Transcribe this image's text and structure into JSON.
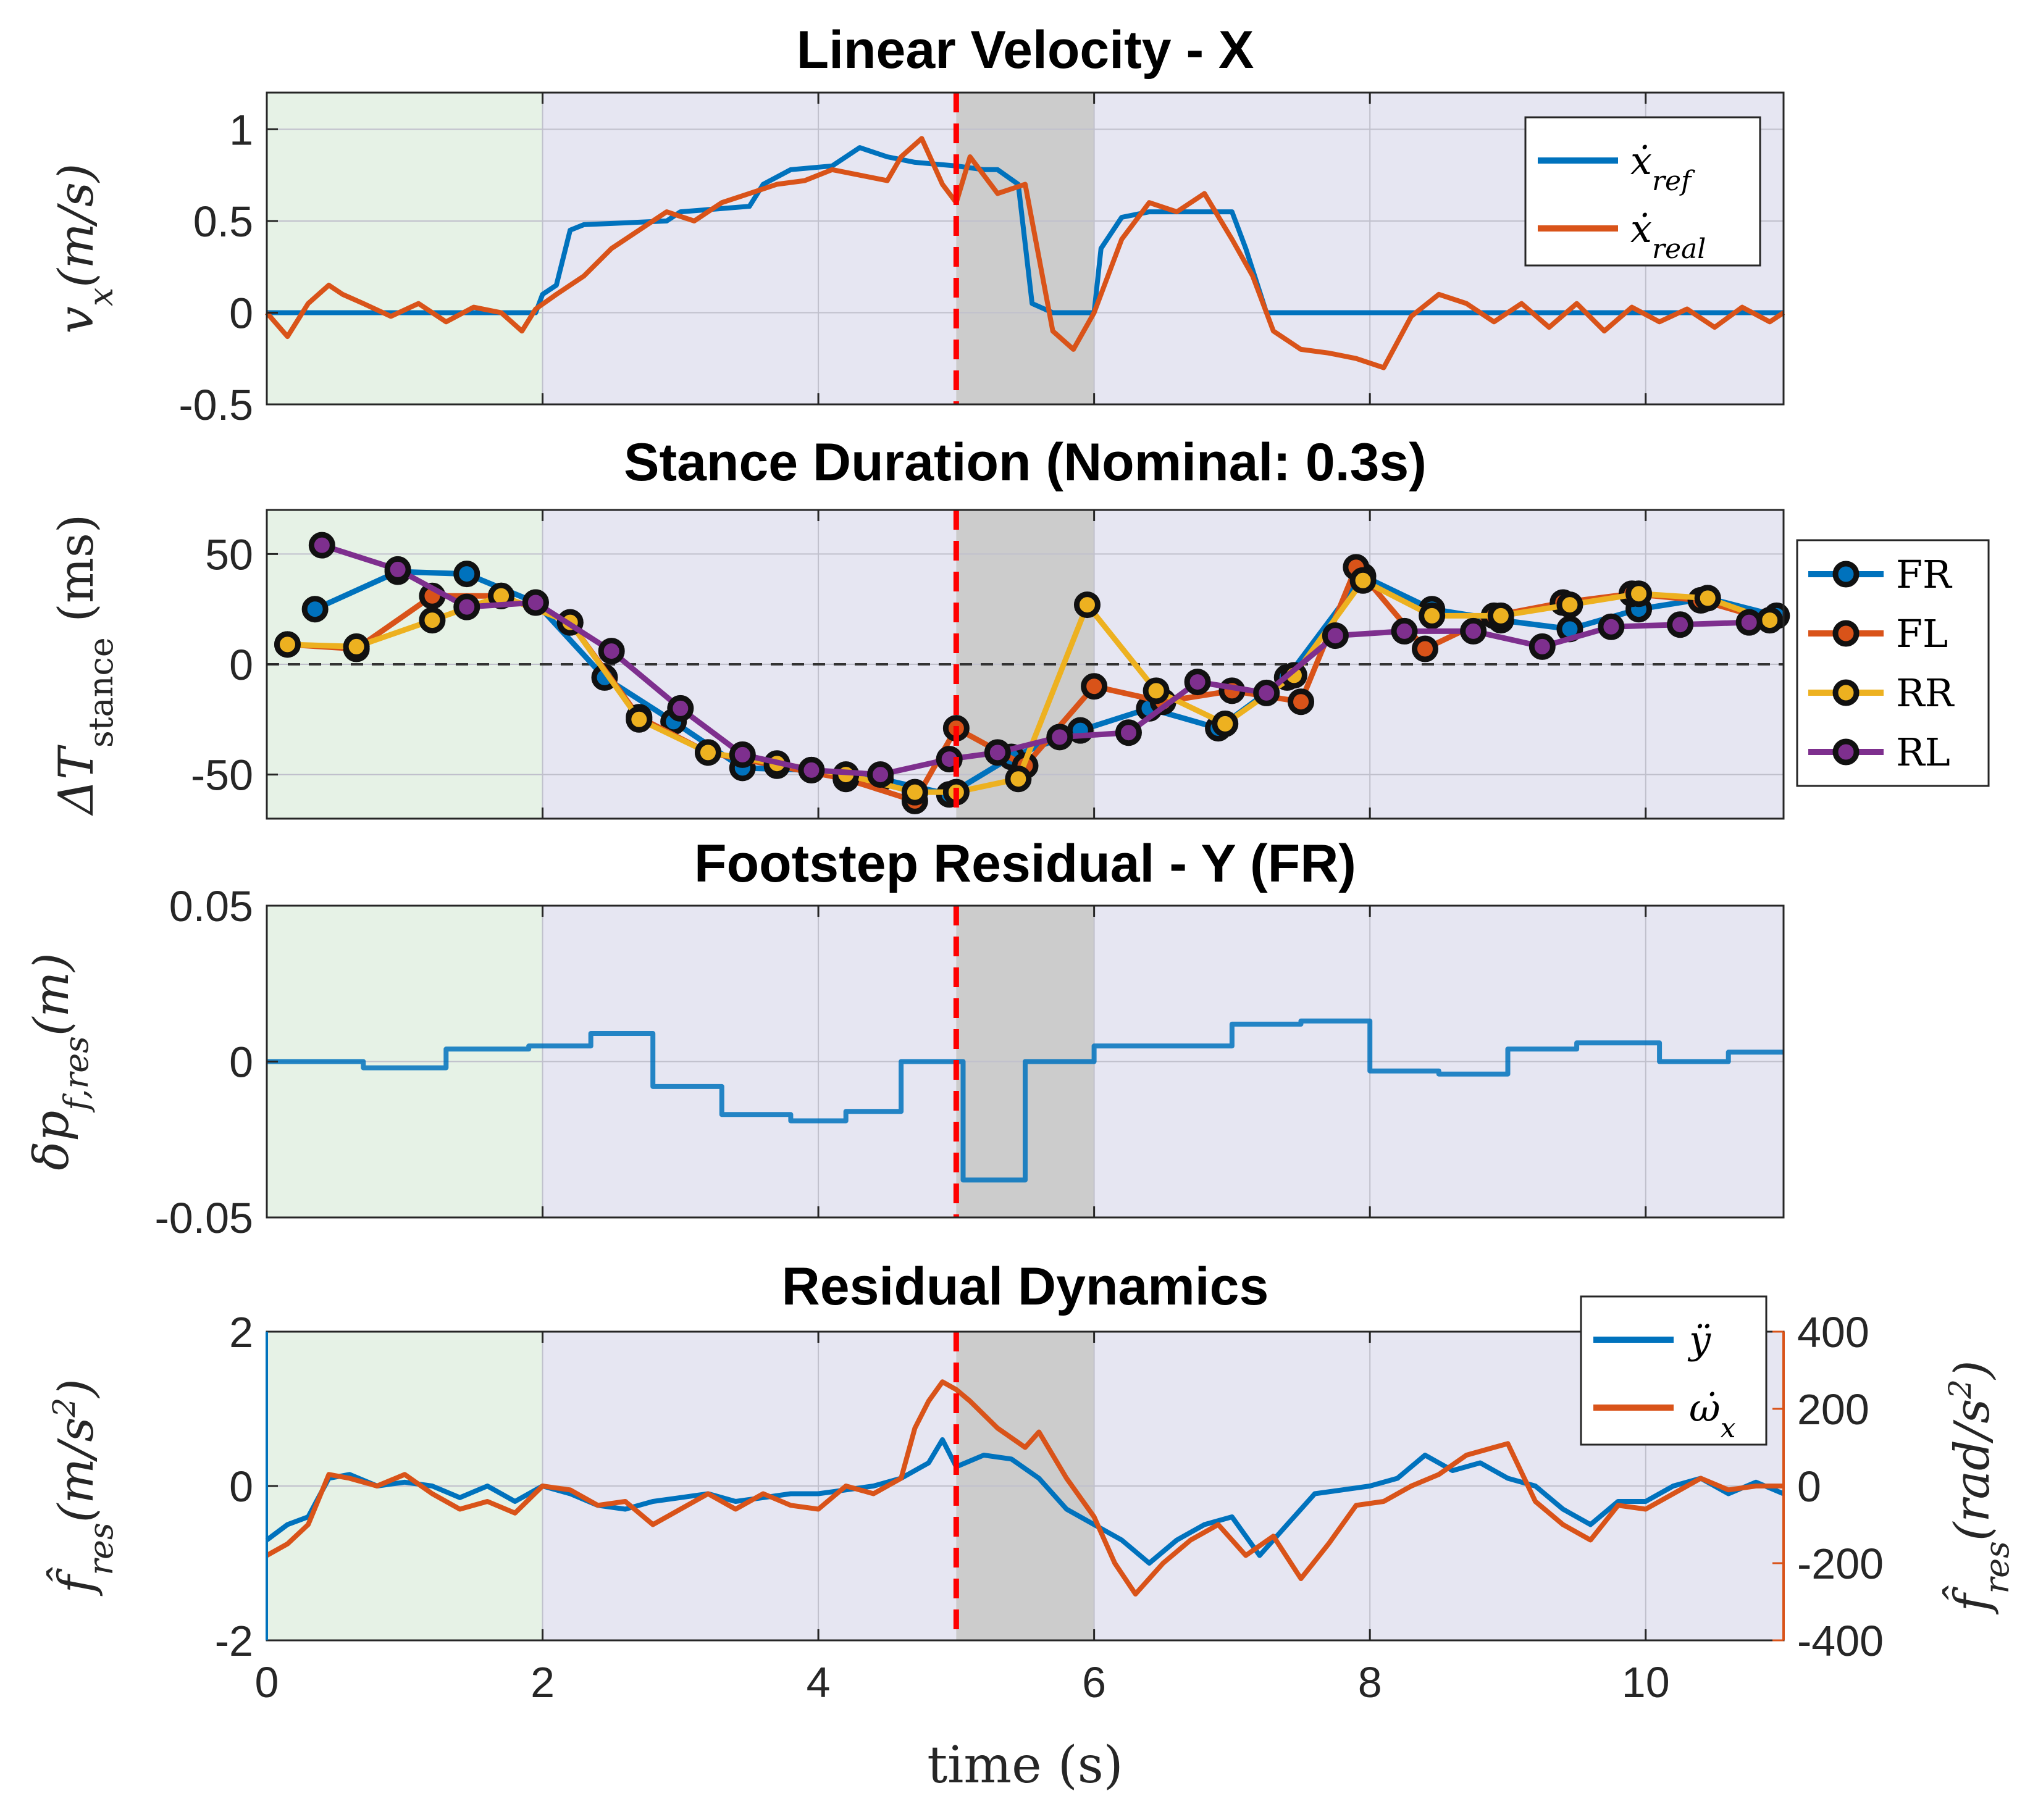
{
  "colors": {
    "blue": "#0072BD",
    "orange": "#D95319",
    "yellow": "#EDB120",
    "purple": "#7E2F8E",
    "bg_main": "#E6E6F2",
    "bg_green": "#E6F2E6",
    "bg_disturb": "#CCCCCC",
    "dashed_red": "#FF0000"
  },
  "xaxis": {
    "label": "time (s)",
    "xlim": [
      0,
      11
    ],
    "ticks": [
      0,
      2,
      4,
      6,
      8,
      10
    ],
    "tick_labels": [
      "0",
      "2",
      "4",
      "6",
      "8",
      "10"
    ]
  },
  "regions": {
    "green": [
      0,
      2
    ],
    "disturbance": [
      5,
      6
    ],
    "event_line": 5
  },
  "chart_data": [
    {
      "type": "line",
      "title": "Linear Velocity - X",
      "ylabel": "v_x(m/s)",
      "ylim": [
        -0.5,
        1.2
      ],
      "yticks": [
        -0.5,
        0,
        0.5,
        1
      ],
      "ytick_labels": [
        "-0.5",
        "0",
        "0.5",
        "1"
      ],
      "legend_placement": "top-right",
      "series": [
        {
          "name": "ẋ_ref",
          "color": "blue",
          "x": [
            0,
            1.95,
            2,
            2.1,
            2.2,
            2.3,
            2.9,
            3.0,
            3.5,
            3.6,
            3.8,
            4.1,
            4.3,
            4.5,
            4.7,
            5.0,
            5.2,
            5.3,
            5.45,
            5.55,
            5.7,
            5.8,
            6.0,
            6.05,
            6.2,
            6.4,
            7.0,
            7.1,
            7.25,
            8,
            11
          ],
          "y": [
            0,
            0,
            0.1,
            0.15,
            0.45,
            0.48,
            0.5,
            0.55,
            0.58,
            0.7,
            0.78,
            0.8,
            0.9,
            0.85,
            0.82,
            0.8,
            0.78,
            0.78,
            0.7,
            0.05,
            0,
            0,
            0,
            0.35,
            0.52,
            0.55,
            0.55,
            0.35,
            0,
            0,
            0
          ]
        },
        {
          "name": "ẋ_real",
          "color": "orange",
          "x": [
            0,
            0.15,
            0.3,
            0.45,
            0.55,
            0.7,
            0.9,
            1.1,
            1.3,
            1.5,
            1.7,
            1.85,
            1.95,
            2.1,
            2.3,
            2.5,
            2.7,
            2.9,
            3.1,
            3.3,
            3.5,
            3.7,
            3.9,
            4.1,
            4.3,
            4.5,
            4.6,
            4.75,
            4.9,
            5.0,
            5.1,
            5.3,
            5.5,
            5.7,
            5.85,
            6.0,
            6.2,
            6.4,
            6.6,
            6.8,
            7.0,
            7.15,
            7.3,
            7.5,
            7.7,
            7.9,
            8.1,
            8.3,
            8.5,
            8.7,
            8.9,
            9.1,
            9.3,
            9.5,
            9.7,
            9.9,
            10.1,
            10.3,
            10.5,
            10.7,
            10.9,
            11
          ],
          "y": [
            0,
            -0.13,
            0.05,
            0.15,
            0.1,
            0.05,
            -0.02,
            0.05,
            -0.05,
            0.03,
            0,
            -0.1,
            0.02,
            0.1,
            0.2,
            0.35,
            0.45,
            0.55,
            0.5,
            0.6,
            0.65,
            0.7,
            0.72,
            0.78,
            0.75,
            0.72,
            0.85,
            0.95,
            0.7,
            0.6,
            0.85,
            0.65,
            0.7,
            -0.1,
            -0.2,
            0,
            0.4,
            0.6,
            0.55,
            0.65,
            0.4,
            0.2,
            -0.1,
            -0.2,
            -0.22,
            -0.25,
            -0.3,
            -0.02,
            0.1,
            0.05,
            -0.05,
            0.05,
            -0.08,
            0.05,
            -0.1,
            0.03,
            -0.05,
            0.02,
            -0.08,
            0.03,
            -0.05,
            0
          ]
        }
      ]
    },
    {
      "type": "line",
      "title": "Stance Duration (Nominal: 0.3s)",
      "ylabel": "ΔT_stance (ms)",
      "ylim": [
        -70,
        70
      ],
      "yticks": [
        -50,
        0,
        50
      ],
      "ytick_labels": [
        "-50",
        "0",
        "50"
      ],
      "reference_line": 0,
      "legend_placement": "outside-right",
      "series": [
        {
          "name": "FR",
          "color": "blue",
          "x": [
            0.35,
            0.95,
            1.45,
            1.95,
            2.45,
            2.95,
            3.45,
            3.95,
            4.45,
            4.95,
            5.4,
            5.9,
            6.4,
            6.9,
            7.4,
            7.95,
            8.45,
            8.95,
            9.45,
            9.95,
            10.45,
            10.95
          ],
          "y": [
            25,
            42,
            41,
            28,
            -6,
            -26,
            -47,
            -48,
            -52,
            -59,
            -42,
            -30,
            -20,
            -29,
            -6,
            40,
            25,
            20,
            16,
            25,
            30,
            22
          ]
        },
        {
          "name": "FL",
          "color": "orange",
          "x": [
            0.15,
            0.65,
            1.2,
            1.7,
            2.2,
            2.7,
            3.2,
            3.7,
            4.2,
            4.7,
            5.0,
            5.5,
            6.0,
            6.5,
            7.0,
            7.5,
            7.9,
            8.4,
            8.9,
            9.4,
            9.9,
            10.4,
            10.9
          ],
          "y": [
            9,
            7,
            31,
            31,
            19,
            -24,
            -40,
            -46,
            -52,
            -62,
            -29,
            -46,
            -10,
            -17,
            -12,
            -17,
            44,
            7,
            22,
            28,
            32,
            29,
            20
          ]
        },
        {
          "name": "RR",
          "color": "yellow",
          "x": [
            0.15,
            0.65,
            1.2,
            1.7,
            2.2,
            2.7,
            3.2,
            3.7,
            4.2,
            4.7,
            5.0,
            5.45,
            5.95,
            6.45,
            6.95,
            7.45,
            7.95,
            8.45,
            8.95,
            9.45,
            9.95,
            10.45,
            10.9
          ],
          "y": [
            9,
            8,
            20,
            31,
            19,
            -25,
            -40,
            -45,
            -50,
            -58,
            -58,
            -52,
            27,
            -12,
            -27,
            -5,
            38,
            22,
            22,
            27,
            32,
            30,
            20
          ]
        },
        {
          "name": "RL",
          "color": "purple",
          "x": [
            0.4,
            0.95,
            1.45,
            1.95,
            2.5,
            3.0,
            3.45,
            3.95,
            4.45,
            4.95,
            5.3,
            5.75,
            6.25,
            6.75,
            7.25,
            7.75,
            8.25,
            8.75,
            9.25,
            9.75,
            10.25,
            10.75
          ],
          "y": [
            54,
            43,
            26,
            28,
            6,
            -20,
            -41,
            -48,
            -50,
            -43,
            -40,
            -33,
            -31,
            -8,
            -13,
            13,
            15,
            15,
            8,
            17,
            18,
            19
          ]
        }
      ]
    },
    {
      "type": "line",
      "title": "Footstep Residual - Y (FR)",
      "ylabel": "δp_f,res(m)",
      "ylim": [
        -0.05,
        0.05
      ],
      "yticks": [
        -0.05,
        0,
        0.05
      ],
      "ytick_labels": [
        "-0.05",
        "0",
        "0.05"
      ],
      "series": [
        {
          "name": "",
          "color": "blue",
          "x": [
            0,
            0.7,
            0.7,
            1.3,
            1.3,
            1.9,
            1.9,
            2.35,
            2.35,
            2.8,
            2.8,
            3.3,
            3.3,
            3.8,
            3.8,
            4.2,
            4.2,
            4.6,
            4.6,
            4.95,
            4.95,
            5.05,
            5.05,
            5.5,
            5.5,
            6.0,
            6.0,
            6.5,
            6.5,
            7.0,
            7.0,
            7.5,
            7.5,
            8.0,
            8.0,
            8.5,
            8.5,
            9.0,
            9.0,
            9.5,
            9.5,
            10.1,
            10.1,
            10.6,
            10.6,
            11
          ],
          "y": [
            0,
            0,
            -0.002,
            -0.002,
            0.004,
            0.004,
            0.005,
            0.005,
            0.009,
            0.009,
            -0.008,
            -0.008,
            -0.017,
            -0.017,
            -0.019,
            -0.019,
            -0.016,
            -0.016,
            0,
            0,
            0,
            0,
            -0.038,
            -0.038,
            0,
            0,
            0.005,
            0.005,
            0.005,
            0.005,
            0.012,
            0.012,
            0.013,
            0.013,
            -0.003,
            -0.003,
            -0.004,
            -0.004,
            0.004,
            0.004,
            0.006,
            0.006,
            0,
            0,
            0.003,
            0.003
          ]
        }
      ]
    },
    {
      "type": "line",
      "title": "Residual Dynamics",
      "ylabel": "f̂_res(m/s²)",
      "ylabel_right": "f̂_res(rad/s²)",
      "ylim": [
        -2,
        2
      ],
      "ylim_right": [
        -400,
        400
      ],
      "yticks": [
        -2,
        0,
        2
      ],
      "ytick_labels": [
        "-2",
        "0",
        "2"
      ],
      "yticks_right": [
        -400,
        -200,
        0,
        200,
        400
      ],
      "ytick_labels_right": [
        "-400",
        "-200",
        "0",
        "200",
        "400"
      ],
      "legend_placement": "top-right",
      "series": [
        {
          "name": "ÿ",
          "color": "blue",
          "axis": "left",
          "x": [
            0,
            0.15,
            0.3,
            0.45,
            0.6,
            0.8,
            1.0,
            1.2,
            1.4,
            1.6,
            1.8,
            2.0,
            2.2,
            2.4,
            2.6,
            2.8,
            3.0,
            3.2,
            3.4,
            3.6,
            3.8,
            4.0,
            4.2,
            4.4,
            4.6,
            4.8,
            4.9,
            5.0,
            5.2,
            5.4,
            5.6,
            5.8,
            6.0,
            6.2,
            6.4,
            6.6,
            6.8,
            7.0,
            7.2,
            7.4,
            7.6,
            7.8,
            8.0,
            8.2,
            8.4,
            8.6,
            8.8,
            9.0,
            9.2,
            9.4,
            9.6,
            9.8,
            10.0,
            10.2,
            10.4,
            10.6,
            10.8,
            11
          ],
          "y": [
            -0.7,
            -0.5,
            -0.4,
            0.1,
            0.15,
            0.0,
            0.05,
            0.0,
            -0.15,
            0.0,
            -0.2,
            0.0,
            -0.1,
            -0.25,
            -0.3,
            -0.2,
            -0.15,
            -0.1,
            -0.2,
            -0.15,
            -0.1,
            -0.1,
            -0.05,
            0.0,
            0.1,
            0.3,
            0.6,
            0.25,
            0.4,
            0.35,
            0.1,
            -0.3,
            -0.5,
            -0.7,
            -1.0,
            -0.7,
            -0.5,
            -0.4,
            -0.9,
            -0.5,
            -0.1,
            -0.05,
            0.0,
            0.1,
            0.4,
            0.2,
            0.3,
            0.1,
            0.0,
            -0.3,
            -0.5,
            -0.2,
            -0.2,
            0.0,
            0.1,
            -0.1,
            0.05,
            -0.1
          ]
        },
        {
          "name": "ω̇_x",
          "color": "orange",
          "axis": "right",
          "x": [
            0,
            0.15,
            0.3,
            0.45,
            0.6,
            0.8,
            1.0,
            1.2,
            1.4,
            1.6,
            1.8,
            2.0,
            2.2,
            2.4,
            2.6,
            2.8,
            3.0,
            3.2,
            3.4,
            3.6,
            3.8,
            4.0,
            4.2,
            4.4,
            4.6,
            4.7,
            4.8,
            4.9,
            5.0,
            5.1,
            5.3,
            5.5,
            5.6,
            5.8,
            6.0,
            6.15,
            6.3,
            6.5,
            6.7,
            6.9,
            7.1,
            7.3,
            7.5,
            7.7,
            7.9,
            8.1,
            8.3,
            8.5,
            8.7,
            8.9,
            9.0,
            9.2,
            9.4,
            9.6,
            9.8,
            10.0,
            10.2,
            10.4,
            10.6,
            10.8,
            11
          ],
          "y": [
            -180,
            -150,
            -100,
            30,
            20,
            0,
            30,
            -20,
            -60,
            -40,
            -70,
            0,
            -10,
            -50,
            -40,
            -100,
            -60,
            -20,
            -60,
            -20,
            -50,
            -60,
            0,
            -20,
            20,
            150,
            220,
            270,
            250,
            220,
            150,
            100,
            140,
            20,
            -80,
            -200,
            -280,
            -200,
            -140,
            -100,
            -180,
            -130,
            -240,
            -150,
            -50,
            -40,
            0,
            30,
            80,
            100,
            110,
            -40,
            -100,
            -140,
            -50,
            -60,
            -20,
            20,
            -10,
            0,
            0
          ]
        }
      ]
    }
  ]
}
